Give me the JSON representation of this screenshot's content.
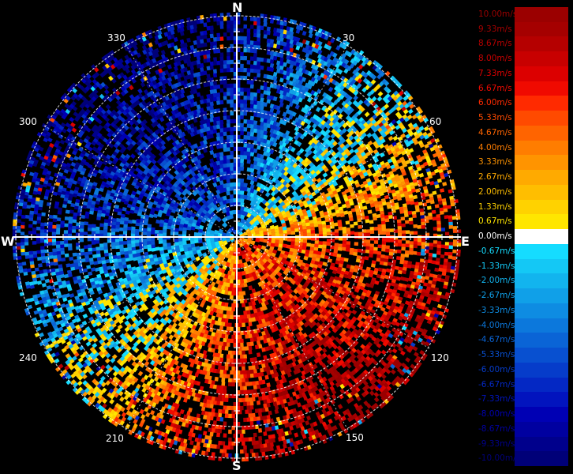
{
  "compass": {
    "north": "N",
    "east": "E",
    "south": "S",
    "west": "W"
  },
  "bearings": [
    "30",
    "60",
    "120",
    "150",
    "210",
    "240",
    "300",
    "330"
  ],
  "legend": {
    "items": [
      {
        "label": "10.00m/s",
        "color": "#9b0000"
      },
      {
        "label": "9.33m/s",
        "color": "#a50000"
      },
      {
        "label": "8.67m/s",
        "color": "#b50000"
      },
      {
        "label": "8.00m/s",
        "color": "#c80000"
      },
      {
        "label": "7.33m/s",
        "color": "#dc0000"
      },
      {
        "label": "6.67m/s",
        "color": "#f00a00"
      },
      {
        "label": "6.00m/s",
        "color": "#ff2a00"
      },
      {
        "label": "5.33m/s",
        "color": "#ff4a00"
      },
      {
        "label": "4.67m/s",
        "color": "#ff6400"
      },
      {
        "label": "4.00m/s",
        "color": "#ff7d00"
      },
      {
        "label": "3.33m/s",
        "color": "#ff9400"
      },
      {
        "label": "2.67m/s",
        "color": "#ffaa00"
      },
      {
        "label": "2.00m/s",
        "color": "#ffbe00"
      },
      {
        "label": "1.33m/s",
        "color": "#ffd200"
      },
      {
        "label": "0.67m/s",
        "color": "#ffe600"
      },
      {
        "label": "0.00m/s",
        "color": "#ffffff"
      },
      {
        "label": "-0.67m/s",
        "color": "#15dcff"
      },
      {
        "label": "-1.33m/s",
        "color": "#14c8f5"
      },
      {
        "label": "-2.00m/s",
        "color": "#12b4ee"
      },
      {
        "label": "-2.67m/s",
        "color": "#10a0e8"
      },
      {
        "label": "-3.33m/s",
        "color": "#0e8ce2"
      },
      {
        "label": "-4.00m/s",
        "color": "#0c78dc"
      },
      {
        "label": "-4.67m/s",
        "color": "#0a64d6"
      },
      {
        "label": "-5.33m/s",
        "color": "#0850d0"
      },
      {
        "label": "-6.00m/s",
        "color": "#063cca"
      },
      {
        "label": "-6.67m/s",
        "color": "#0428c4"
      },
      {
        "label": "-7.33m/s",
        "color": "#0214be"
      },
      {
        "label": "-8.00m/s",
        "color": "#0000b4"
      },
      {
        "label": "-8.67m/s",
        "color": "#0000a0"
      },
      {
        "label": "-9.33m/s",
        "color": "#00008c"
      },
      {
        "label": "-10.00m/s",
        "color": "#000078"
      }
    ]
  }
}
